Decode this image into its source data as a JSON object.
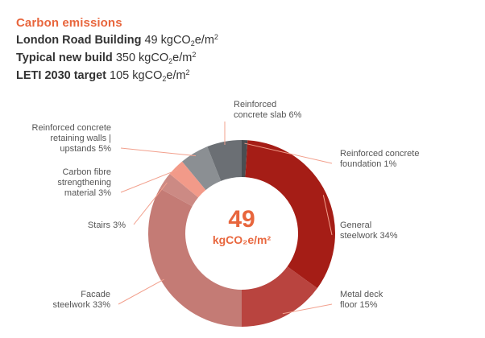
{
  "header": {
    "title": "Carbon emissions",
    "unit_prefix": "kgCO",
    "unit_sub": "2",
    "unit_mid": "e/m",
    "unit_sup": "2",
    "rows": [
      {
        "label": "London Road Building",
        "value": "49"
      },
      {
        "label": "Typical new build",
        "value": "350"
      },
      {
        "label": "LETI 2030 target",
        "value": "105"
      }
    ]
  },
  "chart_data": {
    "type": "pie",
    "donut": true,
    "center_value": "49",
    "center_unit": "kgCO₂e/m²",
    "slices": [
      {
        "label_lines": [
          "Reinforced concrete",
          "foundation 1%"
        ],
        "value": 1,
        "color": "#4a4e52"
      },
      {
        "label_lines": [
          "General",
          "steelwork 34%"
        ],
        "value": 34,
        "color": "#a51d16"
      },
      {
        "label_lines": [
          "Metal deck",
          "floor 15%"
        ],
        "value": 15,
        "color": "#b9443f"
      },
      {
        "label_lines": [
          "Facade",
          "steelwork 33%"
        ],
        "value": 33,
        "color": "#c47b75"
      },
      {
        "label_lines": [
          "Stairs 3%"
        ],
        "value": 3,
        "color": "#cc8a84"
      },
      {
        "label_lines": [
          "Carbon fibre",
          "strengthening",
          "material 3%"
        ],
        "value": 3,
        "color": "#f29a89"
      },
      {
        "label_lines": [
          "Reinforced concrete",
          "retaining walls |",
          "upstands 5%"
        ],
        "value": 5,
        "color": "#8b8f93"
      },
      {
        "label_lines": [
          "Reinforced",
          "concrete slab 6%"
        ],
        "value": 6,
        "color": "#6b6f74"
      }
    ],
    "leader_color": "#f2a08d"
  }
}
